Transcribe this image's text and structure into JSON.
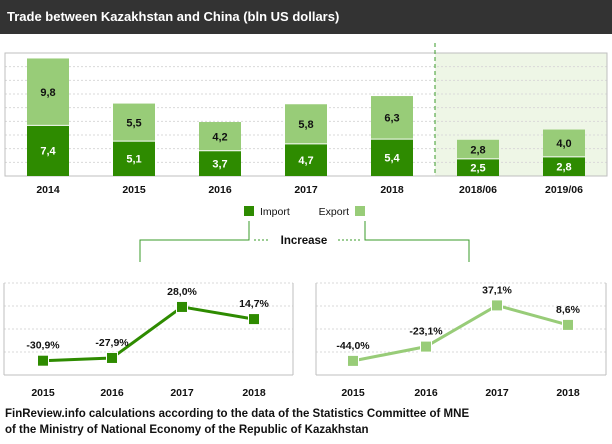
{
  "title": "Trade between Kazakhstan and China (bln US dollars)",
  "colors": {
    "import": "#2e8b00",
    "export": "#98cc78",
    "highlight_bg": "#eef6e6",
    "highlight_line": "#3a9b2a",
    "increase_line": "#3a9b2a",
    "title_bg": "#333333"
  },
  "legend": {
    "import_label": "Import",
    "export_label": "Export"
  },
  "increase_label": "Increase",
  "source": {
    "line1": "FinReview.info  calculations according to the data of the Statistics Committee of MNE",
    "line2": "of the Ministry of National Economy of the Republic of Kazakhstan"
  },
  "chart_data": [
    {
      "type": "bar",
      "stacked": true,
      "title": "Trade between Kazakhstan and China (bln US dollars)",
      "categories": [
        "2014",
        "2015",
        "2016",
        "2017",
        "2018",
        "2018/06",
        "2019/06"
      ],
      "highlighted_categories": [
        "2018/06",
        "2019/06"
      ],
      "series": [
        {
          "name": "Import",
          "values": [
            7.4,
            5.1,
            3.7,
            4.7,
            5.4,
            2.5,
            2.8
          ],
          "labels": [
            "7,4",
            "5,1",
            "3,7",
            "4,7",
            "5,4",
            "2,5",
            "2,8"
          ]
        },
        {
          "name": "Export",
          "values": [
            9.8,
            5.5,
            4.2,
            5.8,
            6.3,
            2.8,
            4.0
          ],
          "labels": [
            "9,8",
            "5,5",
            "4,2",
            "5,8",
            "6,3",
            "2,8",
            "4,0"
          ]
        }
      ],
      "ylim": [
        0,
        18
      ],
      "grid": true,
      "legend": "bottom"
    },
    {
      "type": "line",
      "series_for": "Import",
      "categories": [
        "2015",
        "2016",
        "2017",
        "2018"
      ],
      "values": [
        -30.9,
        -27.9,
        28.0,
        14.7
      ],
      "labels": [
        "-30,9%",
        "-27,9%",
        "28,0%",
        "14,7%"
      ],
      "unit": "%",
      "ylim": [
        -40,
        40
      ],
      "grid": true
    },
    {
      "type": "line",
      "series_for": "Export",
      "categories": [
        "2015",
        "2016",
        "2017",
        "2018"
      ],
      "values": [
        -44.0,
        -23.1,
        37.1,
        8.6
      ],
      "labels": [
        "-44,0%",
        "-23,1%",
        "37,1%",
        "8,6%"
      ],
      "unit": "%",
      "ylim": [
        -50,
        45
      ],
      "grid": true
    }
  ]
}
